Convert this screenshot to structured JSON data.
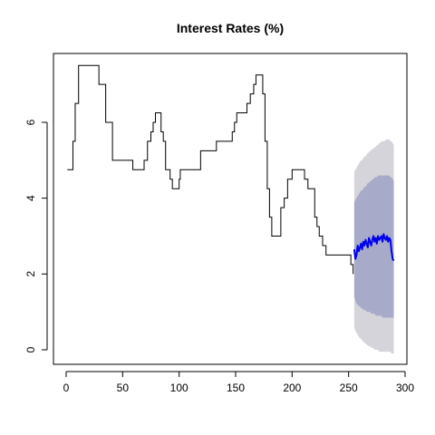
{
  "chart_data": {
    "type": "line",
    "title": "Interest Rates (%)",
    "xlabel": "",
    "ylabel": "",
    "xlim": [
      0,
      300
    ],
    "ylim": [
      0,
      7.5
    ],
    "x_ticks": [
      0,
      50,
      100,
      150,
      200,
      250,
      300
    ],
    "y_ticks": [
      0,
      2,
      4,
      6
    ],
    "grid": false,
    "legend": "none",
    "colors": {
      "history": "#000000",
      "forecast": "#0000ee",
      "band_80": "#a7aac9",
      "band_95": "#d4d4da"
    },
    "history": {
      "points": [
        [
          1,
          4.75
        ],
        [
          5,
          4.75
        ],
        [
          6,
          5.5
        ],
        [
          8,
          6.5
        ],
        [
          11,
          7.5
        ],
        [
          28,
          7.5
        ],
        [
          29,
          7.0
        ],
        [
          33,
          7.0
        ],
        [
          35,
          6.0
        ],
        [
          40,
          6.0
        ],
        [
          41,
          5.0
        ],
        [
          58,
          5.0
        ],
        [
          59,
          4.75
        ],
        [
          68,
          4.75
        ],
        [
          69,
          5.0
        ],
        [
          72,
          5.5
        ],
        [
          75,
          5.75
        ],
        [
          77,
          6.0
        ],
        [
          79,
          6.25
        ],
        [
          83,
          6.25
        ],
        [
          84,
          5.75
        ],
        [
          86,
          5.5
        ],
        [
          88,
          4.75
        ],
        [
          92,
          4.5
        ],
        [
          94,
          4.25
        ],
        [
          99,
          4.25
        ],
        [
          100,
          4.5
        ],
        [
          101,
          4.75
        ],
        [
          118,
          4.75
        ],
        [
          119,
          5.25
        ],
        [
          132,
          5.25
        ],
        [
          133,
          5.5
        ],
        [
          146,
          5.5
        ],
        [
          147,
          5.75
        ],
        [
          149,
          6.0
        ],
        [
          151,
          6.25
        ],
        [
          159,
          6.25
        ],
        [
          160,
          6.5
        ],
        [
          163,
          6.75
        ],
        [
          166,
          7.0
        ],
        [
          168,
          7.25
        ],
        [
          173,
          7.25
        ],
        [
          174,
          6.75
        ],
        [
          176,
          5.5
        ],
        [
          178,
          4.25
        ],
        [
          180,
          3.5
        ],
        [
          182,
          3.0
        ],
        [
          189,
          3.0
        ],
        [
          190,
          3.75
        ],
        [
          193,
          4.0
        ],
        [
          196,
          4.5
        ],
        [
          199,
          4.5
        ],
        [
          200,
          4.75
        ],
        [
          210,
          4.75
        ],
        [
          211,
          4.5
        ],
        [
          214,
          4.25
        ],
        [
          219,
          4.25
        ],
        [
          220,
          3.5
        ],
        [
          222,
          3.25
        ],
        [
          224,
          3.0
        ],
        [
          227,
          2.75
        ],
        [
          230,
          2.5
        ],
        [
          250,
          2.5
        ],
        [
          252,
          2.25
        ],
        [
          254,
          2.0
        ]
      ]
    },
    "forecast": {
      "x_start": 255,
      "x_end": 290,
      "mean": [
        2.65,
        2.4,
        2.5,
        2.75,
        2.6,
        2.7,
        2.8,
        2.65,
        2.85,
        2.75,
        2.9,
        2.8,
        2.7,
        2.95,
        2.85,
        2.75,
        2.9,
        3.0,
        2.85,
        2.95,
        2.8,
        3.0,
        2.9,
        2.95,
        3.0,
        2.85,
        3.05,
        2.95,
        2.9,
        3.0,
        2.85,
        2.95,
        2.9,
        2.6,
        2.4,
        2.35
      ],
      "lower_80": [
        1.4,
        1.3,
        1.2,
        1.2,
        1.15,
        1.15,
        1.1,
        1.1,
        1.05,
        1.05,
        1.05,
        1.0,
        1.0,
        1.0,
        1.0,
        0.95,
        0.95,
        0.95,
        0.95,
        0.9,
        0.9,
        0.9,
        0.9,
        0.9,
        0.9,
        0.85,
        0.85,
        0.85,
        0.85,
        0.85,
        0.85,
        0.85,
        0.85,
        0.85,
        0.85,
        0.85
      ],
      "upper_80": [
        3.9,
        3.95,
        4.0,
        4.05,
        4.1,
        4.15,
        4.2,
        4.2,
        4.25,
        4.3,
        4.3,
        4.35,
        4.4,
        4.4,
        4.45,
        4.45,
        4.5,
        4.5,
        4.55,
        4.55,
        4.55,
        4.6,
        4.6,
        4.6,
        4.6,
        4.6,
        4.6,
        4.6,
        4.6,
        4.6,
        4.6,
        4.6,
        4.55,
        4.55,
        4.5,
        4.45
      ],
      "lower_95": [
        0.6,
        0.5,
        0.45,
        0.4,
        0.35,
        0.3,
        0.3,
        0.25,
        0.2,
        0.2,
        0.15,
        0.15,
        0.1,
        0.1,
        0.1,
        0.05,
        0.05,
        0.05,
        0.0,
        0.0,
        0.0,
        0.0,
        -0.05,
        -0.05,
        -0.05,
        -0.05,
        -0.05,
        -0.05,
        -0.05,
        -0.05,
        -0.05,
        -0.05,
        -0.05,
        -0.1,
        -0.1,
        -0.1
      ],
      "upper_95": [
        4.7,
        4.75,
        4.8,
        4.85,
        4.9,
        4.95,
        5.0,
        5.0,
        5.05,
        5.1,
        5.1,
        5.15,
        5.2,
        5.2,
        5.25,
        5.25,
        5.3,
        5.3,
        5.35,
        5.35,
        5.4,
        5.4,
        5.45,
        5.45,
        5.5,
        5.5,
        5.5,
        5.5,
        5.55,
        5.55,
        5.55,
        5.55,
        5.5,
        5.5,
        5.45,
        5.4
      ]
    }
  }
}
